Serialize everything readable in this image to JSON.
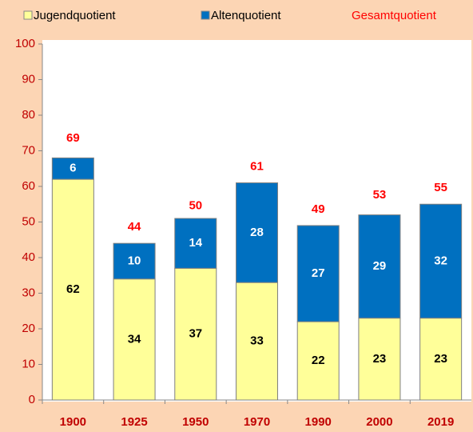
{
  "chart_data": {
    "type": "stacked-bar",
    "categories": [
      "1900",
      "1925",
      "1950",
      "1970",
      "1990",
      "2000",
      "2019"
    ],
    "series": [
      {
        "name": "Jugendquotient",
        "color": "#ffff99",
        "label_color": "#000000",
        "values": [
          62,
          34,
          37,
          33,
          22,
          23,
          23
        ]
      },
      {
        "name": "Altenquotient",
        "color": "#0070c0",
        "label_color": "#ffffff",
        "values": [
          6,
          10,
          14,
          28,
          27,
          29,
          32
        ]
      }
    ],
    "totals": {
      "name": "Gesamtquotient",
      "color": "#ff0000",
      "values": [
        69,
        44,
        50,
        61,
        49,
        53,
        55
      ]
    },
    "ylim": [
      0,
      100
    ],
    "yticks": [
      0,
      10,
      20,
      30,
      40,
      50,
      60,
      70,
      80,
      90,
      100
    ],
    "background": "#fcd5b4",
    "legend": "top"
  }
}
